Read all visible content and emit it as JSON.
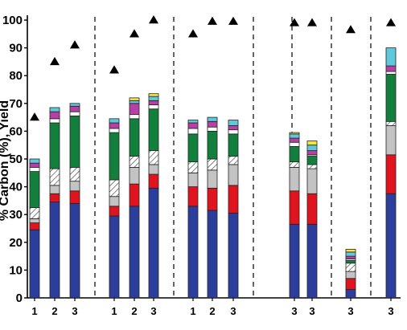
{
  "chart_data": {
    "type": "bar",
    "stacked": true,
    "title": "",
    "xlabel": "",
    "ylabel": "% Carbon (%), Yield",
    "ylim": [
      0,
      100
    ],
    "yticks": [
      0,
      10,
      20,
      30,
      40,
      50,
      60,
      70,
      80,
      90,
      100
    ],
    "grid": false,
    "legend": "none",
    "group_separators": "dashed vertical lines between groups",
    "groups": [
      {
        "bars": [
          {
            "label": "1",
            "triangle": 65,
            "segments": [
              24.5,
              2.5,
              1.5,
              4,
              13,
              1.5,
              1.5,
              1.5,
              0
            ]
          },
          {
            "label": "2",
            "triangle": 85,
            "segments": [
              34.5,
              3,
              3,
              6,
              16.5,
              1.5,
              2.5,
              1.5,
              0
            ]
          },
          {
            "label": "3",
            "triangle": 91,
            "segments": [
              34,
              4.5,
              3.5,
              5,
              18.5,
              1.5,
              2,
              1,
              0
            ]
          }
        ]
      },
      {
        "bars": [
          {
            "label": "1",
            "triangle": 82,
            "segments": [
              29.5,
              3.5,
              3.5,
              6,
              17,
              1.5,
              2,
              1.5,
              0
            ]
          },
          {
            "label": "2",
            "triangle": 95,
            "segments": [
              33,
              8,
              6,
              4,
              13.5,
              1.5,
              4,
              1,
              1
            ]
          },
          {
            "label": "3",
            "triangle": 100,
            "segments": [
              39.5,
              5,
              3.5,
              5,
              15,
              1.5,
              1.5,
              1.5,
              1
            ]
          }
        ]
      },
      {
        "bars": [
          {
            "label": "1",
            "triangle": 95,
            "segments": [
              33,
              7,
              5,
              4,
              10,
              2,
              2,
              1,
              0
            ]
          },
          {
            "label": "2",
            "triangle": 99.5,
            "segments": [
              31.5,
              8,
              6.5,
              4,
              10,
              1.5,
              2,
              1.5,
              0
            ]
          },
          {
            "label": "3",
            "triangle": 99.5,
            "segments": [
              30.5,
              10,
              7.5,
              3,
              8,
              1.5,
              1.5,
              2,
              0
            ]
          }
        ]
      },
      {
        "bars": [
          {
            "label": "3",
            "triangle": 99,
            "segments": [
              26.5,
              12,
              8.5,
              2,
              5.5,
              1.5,
              1.5,
              1.5,
              0.5
            ]
          }
        ]
      },
      {
        "bars": [
          {
            "label": "3",
            "triangle": 99,
            "segments": [
              26.5,
              11,
              9,
              1.5,
              3,
              0.5,
              1.5,
              2,
              1.5
            ]
          }
        ]
      },
      {
        "bars": [
          {
            "label": "3",
            "triangle": 96.5,
            "segments": [
              3,
              4,
              2.5,
              3,
              1,
              0.5,
              1,
              1.5,
              1
            ]
          }
        ]
      },
      {
        "bars": [
          {
            "label": "3",
            "triangle": 99,
            "segments": [
              37.5,
              14,
              10.5,
              1.5,
              17,
              1,
              2,
              6.5,
              0
            ]
          }
        ]
      }
    ],
    "segment_colors": [
      "#2c3e9c",
      "#e0141e",
      "#c3c3c3",
      "hatch",
      "#12803c",
      "#ffffff",
      "#b83fa3",
      "#5fc8dc",
      "#f5e542"
    ]
  }
}
